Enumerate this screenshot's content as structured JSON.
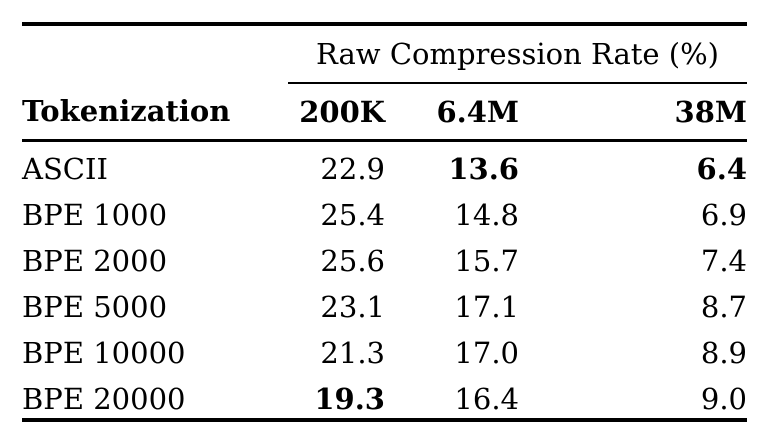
{
  "table": {
    "span_header": "Raw Compression Rate (%)",
    "columns": [
      "Tokenization",
      "200K",
      "6.4M",
      "38M"
    ],
    "rows": [
      {
        "label": "ASCII",
        "values": [
          "22.9",
          "13.6",
          "6.4"
        ],
        "bold": [
          false,
          true,
          true
        ]
      },
      {
        "label": "BPE 1000",
        "values": [
          "25.4",
          "14.8",
          "6.9"
        ],
        "bold": [
          false,
          false,
          false
        ]
      },
      {
        "label": "BPE 2000",
        "values": [
          "25.6",
          "15.7",
          "7.4"
        ],
        "bold": [
          false,
          false,
          false
        ]
      },
      {
        "label": "BPE 5000",
        "values": [
          "23.1",
          "17.1",
          "8.7"
        ],
        "bold": [
          false,
          false,
          false
        ]
      },
      {
        "label": "BPE 10000",
        "values": [
          "21.3",
          "17.0",
          "8.9"
        ],
        "bold": [
          false,
          false,
          false
        ]
      },
      {
        "label": "BPE 20000",
        "values": [
          "19.3",
          "16.4",
          "9.0"
        ],
        "bold": [
          true,
          false,
          false
        ]
      }
    ],
    "colors": {
      "text": "#000000",
      "rule": "#000000",
      "background": "#ffffff"
    }
  },
  "chart_data": {
    "type": "table",
    "title": "Raw Compression Rate (%)",
    "categories": [
      "ASCII",
      "BPE 1000",
      "BPE 2000",
      "BPE 5000",
      "BPE 10000",
      "BPE 20000"
    ],
    "series": [
      {
        "name": "200K",
        "values": [
          22.9,
          25.4,
          25.6,
          23.1,
          21.3,
          19.3
        ]
      },
      {
        "name": "6.4M",
        "values": [
          13.6,
          14.8,
          15.7,
          17.1,
          17.0,
          16.4
        ]
      },
      {
        "name": "38M",
        "values": [
          6.4,
          6.9,
          7.4,
          8.7,
          8.9,
          9.0
        ]
      }
    ]
  }
}
